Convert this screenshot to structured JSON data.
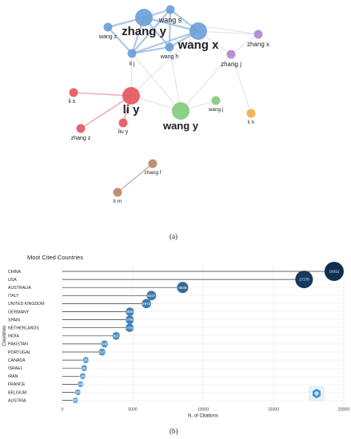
{
  "panel_a_label": "(a)",
  "panel_b_label": "(b)",
  "network": {
    "nodes": [
      {
        "id": "zhang y",
        "label": "zhang y",
        "color": "#6a9fd8",
        "size": "large"
      },
      {
        "id": "wang s",
        "label": "wang s",
        "color": "#6a9fd8",
        "size": "small"
      },
      {
        "id": "wang x",
        "label": "wang x",
        "color": "#6a9fd8",
        "size": "large"
      },
      {
        "id": "wang z",
        "label": "wang z",
        "color": "#6a9fd8",
        "size": "small"
      },
      {
        "id": "li j",
        "label": "li j",
        "color": "#6a9fd8",
        "size": "small"
      },
      {
        "id": "wang h",
        "label": "wang h",
        "color": "#6a9fd8",
        "size": "small"
      },
      {
        "id": "zhang x",
        "label": "zhang x",
        "color": "#b57fcf",
        "size": "small"
      },
      {
        "id": "zhang j",
        "label": "zhang j",
        "color": "#b57fcf",
        "size": "small"
      },
      {
        "id": "li y",
        "label": "li y",
        "color": "#e3545c",
        "size": "large"
      },
      {
        "id": "li s",
        "label": "li s",
        "color": "#e3545c",
        "size": "small"
      },
      {
        "id": "liu y",
        "label": "liu y",
        "color": "#e3545c",
        "size": "small"
      },
      {
        "id": "zhang z",
        "label": "zhang z",
        "color": "#e3545c",
        "size": "small"
      },
      {
        "id": "wang y",
        "label": "wang y",
        "color": "#7fca7b",
        "size": "large"
      },
      {
        "id": "wang j",
        "label": "wang j",
        "color": "#7fca7b",
        "size": "small"
      },
      {
        "id": "li h",
        "label": "li h",
        "color": "#f5a947",
        "size": "small"
      },
      {
        "id": "zhang f",
        "label": "zhang f",
        "color": "#b88468",
        "size": "small"
      },
      {
        "id": "li m",
        "label": "li m",
        "color": "#b88468",
        "size": "small"
      }
    ],
    "edges": [
      [
        "zhang y",
        "wang s"
      ],
      [
        "zhang y",
        "wang x"
      ],
      [
        "zhang y",
        "wang z"
      ],
      [
        "zhang y",
        "li j"
      ],
      [
        "zhang y",
        "wang h"
      ],
      [
        "wang s",
        "wang x"
      ],
      [
        "wang s",
        "li j"
      ],
      [
        "wang s",
        "wang h"
      ],
      [
        "wang x",
        "li j"
      ],
      [
        "wang x",
        "wang h"
      ],
      [
        "wang x",
        "zhang x"
      ],
      [
        "wang x",
        "zhang j"
      ],
      [
        "wang z",
        "li j"
      ],
      [
        "li j",
        "wang h"
      ],
      [
        "zhang y",
        "zhang x"
      ],
      [
        "zhang j",
        "zhang x"
      ],
      [
        "li y",
        "li s"
      ],
      [
        "li y",
        "liu y"
      ],
      [
        "li y",
        "zhang z"
      ],
      [
        "li y",
        "wang y"
      ],
      [
        "li j",
        "li y"
      ],
      [
        "li j",
        "wang y"
      ],
      [
        "wang h",
        "wang y"
      ],
      [
        "wang y",
        "wang j"
      ],
      [
        "zhang j",
        "wang y"
      ],
      [
        "zhang j",
        "li h"
      ],
      [
        "wang x",
        "li y"
      ],
      [
        "zhang f",
        "li m"
      ]
    ]
  },
  "chart_data": {
    "type": "bar",
    "title": "Most Cited Countries",
    "xlabel": "N. of Citations",
    "ylabel": "Countries",
    "xlim": [
      0,
      20000
    ],
    "xticks": [
      0,
      5000,
      10000,
      15000,
      20000
    ],
    "grid": true,
    "categories": [
      "CHINA",
      "USA",
      "AUSTRALIA",
      "ITALY",
      "UNITED KINGDOM",
      "GERMANY",
      "SPAIN",
      "NETHERLANDS",
      "INDIA",
      "PAKISTAN",
      "PORTUGAL",
      "CANADA",
      "ISRAEL",
      "IRAN",
      "FRANCE",
      "BELGIUM",
      "AUSTRIA"
    ],
    "values": [
      19312,
      17178,
      8549,
      6327,
      5972,
      4800,
      4790,
      4780,
      3821,
      2995,
      2820,
      1668,
      1550,
      1450,
      1290,
      1100,
      920
    ],
    "value_labels": [
      "19312",
      "17178",
      "8549",
      "6327",
      "5972",
      "4800",
      "4790",
      "4780",
      "3821",
      "2995",
      "2820",
      "1668",
      "1550",
      "1450",
      "1290",
      "1100",
      "920"
    ],
    "colors": {
      "dark": "#0e2f50",
      "light": "#5aa3e0",
      "line": "#333333"
    }
  }
}
